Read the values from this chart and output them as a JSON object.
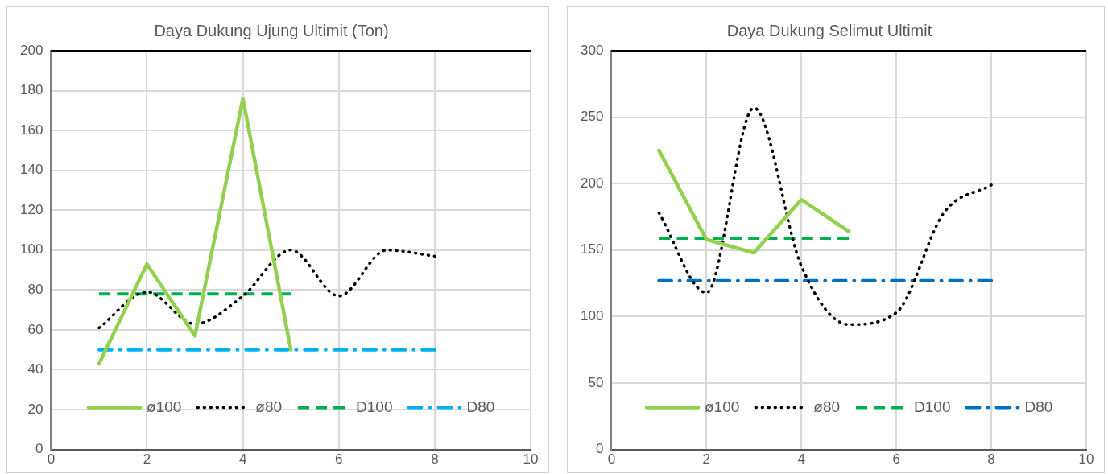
{
  "chart_data": [
    {
      "type": "line",
      "title": "Daya Dukung Ujung Ultimit (Ton)",
      "xlim": [
        0,
        10
      ],
      "xticks": [
        0,
        2,
        4,
        6,
        8,
        10
      ],
      "ylim": [
        0,
        200
      ],
      "yticks": [
        0,
        20,
        40,
        60,
        80,
        100,
        120,
        140,
        160,
        180,
        200
      ],
      "grid": true,
      "legend": "bottom",
      "marker": "none",
      "series": [
        {
          "name": "ø100",
          "color": "#92d050",
          "line_style": "solid",
          "x": [
            1,
            2,
            3,
            4,
            5
          ],
          "values": [
            43,
            93,
            57,
            176,
            50
          ]
        },
        {
          "name": "ø80",
          "color": "#000000",
          "line_style": "dotted",
          "x": [
            1,
            2,
            3,
            4,
            5,
            6,
            7,
            8
          ],
          "values": [
            61,
            79,
            63,
            77,
            100,
            77,
            100,
            97
          ]
        },
        {
          "name": "D100",
          "color": "#00b050",
          "line_style": "dashed",
          "x": [
            1,
            5
          ],
          "values": [
            78,
            78
          ]
        },
        {
          "name": "D80",
          "color": "#00b0f0",
          "line_style": "dashdot",
          "x": [
            1,
            8
          ],
          "values": [
            50,
            50
          ]
        }
      ]
    },
    {
      "type": "line",
      "title": "Daya Dukung Selimut Ultimit",
      "xlim": [
        0,
        10
      ],
      "xticks": [
        0,
        2,
        4,
        6,
        8,
        10
      ],
      "ylim": [
        0,
        300
      ],
      "yticks": [
        0,
        50,
        100,
        150,
        200,
        250,
        300
      ],
      "grid": true,
      "legend": "bottom",
      "marker": "none",
      "series": [
        {
          "name": "ø100",
          "color": "#92d050",
          "line_style": "solid",
          "x": [
            1,
            2,
            3,
            4,
            5
          ],
          "values": [
            225,
            158,
            148,
            188,
            164
          ]
        },
        {
          "name": "ø80",
          "color": "#000000",
          "line_style": "dotted",
          "x": [
            1,
            2,
            3,
            4,
            5,
            6,
            7,
            8
          ],
          "values": [
            178,
            118,
            257,
            138,
            94,
            103,
            178,
            199
          ]
        },
        {
          "name": "D100",
          "color": "#00b050",
          "line_style": "dashed",
          "x": [
            1,
            5
          ],
          "values": [
            159,
            159
          ]
        },
        {
          "name": "D80",
          "color": "#0070c0",
          "line_style": "dashdot",
          "x": [
            1,
            8
          ],
          "values": [
            127,
            127
          ]
        }
      ]
    }
  ]
}
